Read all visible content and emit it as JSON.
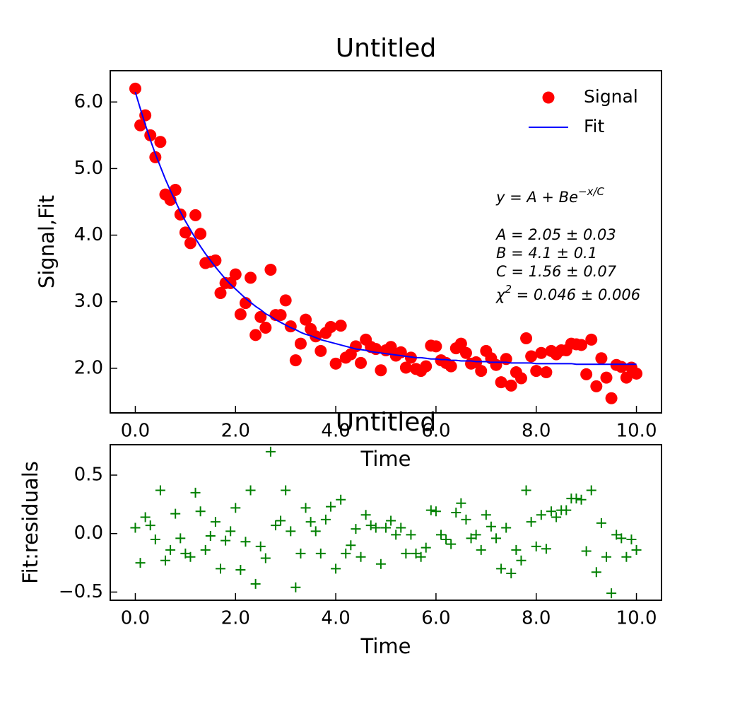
{
  "chart_data": [
    {
      "type": "scatter",
      "title": "Untitled",
      "xlabel": "Time",
      "ylabel": "Signal,Fit",
      "legend": "upper right",
      "x": [
        0,
        0.1,
        0.2,
        0.3,
        0.4,
        0.5,
        0.6,
        0.7,
        0.8,
        0.9,
        1,
        1.1,
        1.2,
        1.3,
        1.4,
        1.5,
        1.6,
        1.7,
        1.8,
        1.9,
        2,
        2.1,
        2.2,
        2.3,
        2.4,
        2.5,
        2.6,
        2.7,
        2.8,
        2.9,
        3,
        3.1,
        3.2,
        3.3,
        3.4,
        3.5,
        3.6,
        3.7,
        3.8,
        3.9,
        4,
        4.1,
        4.2,
        4.3,
        4.4,
        4.5,
        4.6,
        4.7,
        4.8,
        4.9,
        5,
        5.1,
        5.2,
        5.3,
        5.4,
        5.5,
        5.6,
        5.7,
        5.8,
        5.9,
        6,
        6.1,
        6.2,
        6.3,
        6.4,
        6.5,
        6.6,
        6.7,
        6.8,
        6.9,
        7,
        7.1,
        7.2,
        7.3,
        7.4,
        7.5,
        7.6,
        7.7,
        7.8,
        7.9,
        8,
        8.1,
        8.2,
        8.3,
        8.4,
        8.5,
        8.6,
        8.7,
        8.8,
        8.9,
        9,
        9.1,
        9.2,
        9.3,
        9.4,
        9.5,
        9.6,
        9.7,
        9.8,
        9.9,
        10
      ],
      "series": [
        {
          "name": "Signal",
          "mode": "markers",
          "marker": "circle",
          "color": "#ff0000",
          "values": [
            6.2,
            5.65,
            5.8,
            5.5,
            5.17,
            5.4,
            4.61,
            4.53,
            4.68,
            4.31,
            4.04,
            3.88,
            4.3,
            4.02,
            3.58,
            3.6,
            3.62,
            3.13,
            3.28,
            3.28,
            3.41,
            2.81,
            2.98,
            3.36,
            2.5,
            2.77,
            2.61,
            3.48,
            2.8,
            2.8,
            3.02,
            2.63,
            2.12,
            2.37,
            2.73,
            2.59,
            2.48,
            2.26,
            2.53,
            2.62,
            2.07,
            2.64,
            2.16,
            2.21,
            2.33,
            2.08,
            2.43,
            2.32,
            2.29,
            1.97,
            2.27,
            2.32,
            2.19,
            2.24,
            2.01,
            2.16,
            1.99,
            1.96,
            2.03,
            2.34,
            2.33,
            2.12,
            2.08,
            2.03,
            2.3,
            2.37,
            2.23,
            2.07,
            2.09,
            1.96,
            2.26,
            2.15,
            2.05,
            1.79,
            2.14,
            1.74,
            1.94,
            1.85,
            2.45,
            2.18,
            1.96,
            2.23,
            1.94,
            2.26,
            2.21,
            2.27,
            2.27,
            2.37,
            2.36,
            2.35,
            1.91,
            2.43,
            1.73,
            2.15,
            1.86,
            1.55,
            2.05,
            2.02,
            1.86,
            2.01,
            1.92
          ]
        },
        {
          "name": "Fit",
          "mode": "line",
          "color": "#0000ff",
          "values": [
            6.15,
            5.9,
            5.66,
            5.43,
            5.22,
            5.03,
            4.84,
            4.67,
            4.51,
            4.35,
            4.21,
            4.08,
            3.95,
            3.83,
            3.72,
            3.62,
            3.52,
            3.43,
            3.34,
            3.26,
            3.19,
            3.12,
            3.05,
            2.99,
            2.93,
            2.88,
            2.82,
            2.78,
            2.73,
            2.69,
            2.65,
            2.61,
            2.58,
            2.54,
            2.51,
            2.49,
            2.46,
            2.43,
            2.41,
            2.39,
            2.37,
            2.35,
            2.33,
            2.31,
            2.29,
            2.28,
            2.27,
            2.25,
            2.24,
            2.23,
            2.22,
            2.21,
            2.2,
            2.19,
            2.18,
            2.17,
            2.16,
            2.16,
            2.15,
            2.14,
            2.14,
            2.13,
            2.13,
            2.12,
            2.12,
            2.11,
            2.11,
            2.11,
            2.1,
            2.1,
            2.1,
            2.09,
            2.09,
            2.09,
            2.09,
            2.08,
            2.08,
            2.08,
            2.08,
            2.08,
            2.07,
            2.07,
            2.07,
            2.07,
            2.07,
            2.07,
            2.07,
            2.07,
            2.06,
            2.06,
            2.06,
            2.06,
            2.06,
            2.06,
            2.06,
            2.06,
            2.06,
            2.06,
            2.06,
            2.06,
            2.06
          ]
        }
      ],
      "xlim": [
        -0.5,
        10.5
      ],
      "ylim": [
        1.33,
        6.47
      ],
      "xticks": [
        {
          "value": 0,
          "label": "0.0"
        },
        {
          "value": 2,
          "label": "2.0"
        },
        {
          "value": 4,
          "label": "4.0"
        },
        {
          "value": 6,
          "label": "6.0"
        },
        {
          "value": 8,
          "label": "8.0"
        },
        {
          "value": 10,
          "label": "10.0"
        }
      ],
      "yticks": [
        {
          "value": 2,
          "label": "2.0"
        },
        {
          "value": 3,
          "label": "3.0"
        },
        {
          "value": 4,
          "label": "4.0"
        },
        {
          "value": 5,
          "label": "5.0"
        },
        {
          "value": 6,
          "label": "6.0"
        }
      ],
      "annotation": {
        "equation": {
          "base": "y = A + Be",
          "exponent": "−x/C"
        },
        "params": [
          "A = 2.05 ± 0.03",
          "B = 4.1 ± 0.1",
          "C = 1.56 ± 0.07"
        ],
        "chi": {
          "base": "χ",
          "exponent": "2",
          "rest": " = 0.046 ± 0.006"
        }
      }
    },
    {
      "type": "scatter",
      "title": "Untitled",
      "xlabel": "Time",
      "ylabel": "Fit:residuals",
      "x": [
        0,
        0.1,
        0.2,
        0.3,
        0.4,
        0.5,
        0.6,
        0.7,
        0.8,
        0.9,
        1,
        1.1,
        1.2,
        1.3,
        1.4,
        1.5,
        1.6,
        1.7,
        1.8,
        1.9,
        2,
        2.1,
        2.2,
        2.3,
        2.4,
        2.5,
        2.6,
        2.7,
        2.8,
        2.9,
        3,
        3.1,
        3.2,
        3.3,
        3.4,
        3.5,
        3.6,
        3.7,
        3.8,
        3.9,
        4,
        4.1,
        4.2,
        4.3,
        4.4,
        4.5,
        4.6,
        4.7,
        4.8,
        4.9,
        5,
        5.1,
        5.2,
        5.3,
        5.4,
        5.5,
        5.6,
        5.7,
        5.8,
        5.9,
        6,
        6.1,
        6.2,
        6.3,
        6.4,
        6.5,
        6.6,
        6.7,
        6.8,
        6.9,
        7,
        7.1,
        7.2,
        7.3,
        7.4,
        7.5,
        7.6,
        7.7,
        7.8,
        7.9,
        8,
        8.1,
        8.2,
        8.3,
        8.4,
        8.5,
        8.6,
        8.7,
        8.8,
        8.9,
        9,
        9.1,
        9.2,
        9.3,
        9.4,
        9.5,
        9.6,
        9.7,
        9.8,
        9.9,
        10
      ],
      "series": [
        {
          "name": "Fit:residuals",
          "mode": "markers",
          "marker": "plus",
          "color": "#008000",
          "values": [
            0.05,
            -0.25,
            0.14,
            0.07,
            -0.05,
            0.37,
            -0.23,
            -0.14,
            0.17,
            -0.04,
            -0.17,
            -0.2,
            0.35,
            0.19,
            -0.14,
            -0.02,
            0.1,
            -0.3,
            -0.06,
            0.02,
            0.22,
            -0.31,
            -0.07,
            0.37,
            -0.43,
            -0.11,
            -0.21,
            0.7,
            0.07,
            0.11,
            0.37,
            0.02,
            -0.46,
            -0.17,
            0.22,
            0.1,
            0.02,
            -0.17,
            0.12,
            0.23,
            -0.3,
            0.29,
            -0.17,
            -0.1,
            0.04,
            -0.2,
            0.16,
            0.07,
            0.05,
            -0.26,
            0.05,
            0.11,
            -0.01,
            0.05,
            -0.17,
            -0.01,
            -0.17,
            -0.2,
            -0.12,
            0.2,
            0.19,
            -0.01,
            -0.05,
            -0.09,
            0.18,
            0.26,
            0.12,
            -0.04,
            -0.01,
            -0.14,
            0.16,
            0.06,
            -0.04,
            -0.3,
            0.05,
            -0.34,
            -0.14,
            -0.23,
            0.37,
            0.1,
            -0.11,
            0.16,
            -0.13,
            0.19,
            0.14,
            0.2,
            0.2,
            0.3,
            0.3,
            0.29,
            -0.15,
            0.37,
            -0.33,
            0.09,
            -0.2,
            -0.51,
            -0.01,
            -0.04,
            -0.2,
            -0.05,
            -0.14
          ]
        }
      ],
      "xlim": [
        -0.5,
        10.5
      ],
      "ylim": [
        -0.57,
        0.76
      ],
      "xticks": [
        {
          "value": 0,
          "label": "0.0"
        },
        {
          "value": 2,
          "label": "2.0"
        },
        {
          "value": 4,
          "label": "4.0"
        },
        {
          "value": 6,
          "label": "6.0"
        },
        {
          "value": 8,
          "label": "8.0"
        },
        {
          "value": 10,
          "label": "10.0"
        }
      ],
      "yticks": [
        0.5,
        {
          "value": 0,
          "label": "0.0"
        },
        {
          "value": -0.5,
          "label": "−0.5"
        }
      ]
    }
  ]
}
